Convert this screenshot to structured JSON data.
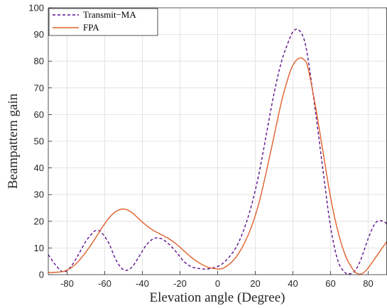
{
  "chart_data": {
    "type": "line",
    "xlabel": "Elevation angle (Degree)",
    "ylabel": "Beampattern gain",
    "xlim": [
      -90,
      90
    ],
    "ylim": [
      0,
      100
    ],
    "xticks": [
      -80,
      -60,
      -40,
      -20,
      0,
      20,
      40,
      60,
      80
    ],
    "yticks": [
      0,
      10,
      20,
      30,
      40,
      50,
      60,
      70,
      80,
      90,
      100
    ],
    "grid": true,
    "legend_position": "top-left",
    "series": [
      {
        "name": "Transmit−MA",
        "color": "#5b0f8c",
        "style": "dashed",
        "x": [
          -90,
          -86,
          -82,
          -78,
          -74,
          -70,
          -66,
          -64,
          -62,
          -58,
          -54,
          -50,
          -46,
          -42,
          -38,
          -34,
          -30,
          -26,
          -22,
          -18,
          -14,
          -10,
          -6,
          -2,
          2,
          6,
          10,
          14,
          18,
          22,
          26,
          30,
          34,
          38,
          40,
          42,
          44,
          46,
          48,
          52,
          56,
          60,
          64,
          68,
          70,
          72,
          74,
          76,
          78,
          80,
          82,
          84,
          86,
          88,
          90
        ],
        "y": [
          7.5,
          3.5,
          1,
          3,
          7.5,
          12.5,
          16,
          16.5,
          16,
          12,
          5.5,
          1.8,
          2.5,
          6.5,
          11,
          13.5,
          13.5,
          11.5,
          8.5,
          5,
          3,
          2.3,
          2.1,
          2.6,
          3.8,
          6.5,
          10.5,
          17,
          26,
          38,
          53,
          68,
          80,
          88,
          91,
          92,
          91,
          88,
          81,
          61,
          39,
          18,
          5,
          0.6,
          0.3,
          0.8,
          2.5,
          5.5,
          9.5,
          13.5,
          17,
          19.5,
          20.2,
          20,
          19
        ]
      },
      {
        "name": "FPA",
        "color": "#e0602b",
        "style": "solid",
        "x": [
          -90,
          -86,
          -82,
          -78,
          -74,
          -70,
          -66,
          -62,
          -58,
          -54,
          -50,
          -46,
          -42,
          -38,
          -34,
          -30,
          -26,
          -22,
          -18,
          -14,
          -10,
          -6,
          -2,
          2,
          6,
          10,
          14,
          18,
          22,
          26,
          30,
          34,
          38,
          40,
          42,
          44,
          46,
          48,
          52,
          56,
          60,
          64,
          68,
          72,
          74,
          76,
          78,
          80,
          84,
          88,
          90
        ],
        "y": [
          0.8,
          0.9,
          1.2,
          2.5,
          5,
          8.5,
          12.5,
          17,
          21,
          23.7,
          24.6,
          23.5,
          21,
          18.5,
          16.5,
          15,
          13.5,
          11.5,
          9,
          6.5,
          4.5,
          3,
          2.3,
          2.2,
          3.8,
          6.8,
          11.5,
          18,
          27,
          39,
          52,
          65,
          75,
          78.5,
          80.5,
          81.2,
          80.5,
          77.5,
          63,
          46,
          29,
          16,
          7,
          1.8,
          0.5,
          0.2,
          1,
          2.5,
          6.5,
          10.5,
          12.5
        ]
      }
    ]
  }
}
